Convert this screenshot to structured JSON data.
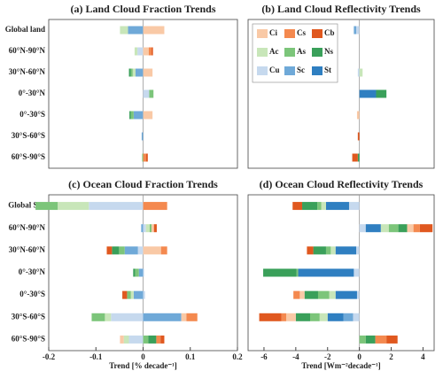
{
  "chart_data": [
    {
      "type": "bar",
      "orientation": "horizontal",
      "stacked": true,
      "title": "(a) Land Cloud Fraction Trends",
      "categories": [
        "Global land",
        "60°N-90°N",
        "30°N-60°N",
        "0°-30°N",
        "0°-30°S",
        "30°S-60°S",
        "60°S-90°S"
      ],
      "xlim": [
        -0.2,
        0.2
      ],
      "series": [
        {
          "color": "#c6d9ee",
          "values": [
            0,
            -0.012,
            0,
            0.013,
            0,
            0,
            0
          ]
        },
        {
          "color": "#6fa9d8",
          "values": [
            -0.032,
            0,
            -0.016,
            0,
            -0.02,
            -0.003,
            0
          ]
        },
        {
          "color": "#2f7fc1",
          "values": [
            0,
            0,
            0,
            0,
            0,
            0,
            0
          ]
        },
        {
          "color": "#c8e6b9",
          "values": [
            -0.017,
            -0.006,
            -0.006,
            0,
            0,
            0,
            0
          ]
        },
        {
          "color": "#7cc57a",
          "values": [
            0,
            0,
            -0.004,
            0.009,
            -0.006,
            0,
            -0.002
          ]
        },
        {
          "color": "#3aa05a",
          "values": [
            0,
            0,
            -0.004,
            0,
            -0.003,
            0,
            0
          ]
        },
        {
          "color": "#f9c9a6",
          "values": [
            0.045,
            0.012,
            0.02,
            0,
            0.02,
            0,
            0
          ]
        },
        {
          "color": "#f4894f",
          "values": [
            0,
            0.006,
            0,
            0,
            0,
            0,
            0.006
          ]
        },
        {
          "color": "#e0581f",
          "values": [
            0,
            0.003,
            0,
            0,
            0,
            0,
            0.004
          ]
        }
      ]
    },
    {
      "type": "bar",
      "orientation": "horizontal",
      "stacked": true,
      "title": "(b) Land Cloud Reflectivity Trends",
      "categories": [
        null,
        null,
        null,
        null,
        null,
        null,
        null
      ],
      "xlim": [
        -7,
        4.7
      ],
      "legend": "upper left",
      "series": [
        {
          "name": "Cu",
          "color": "#c6d9ee",
          "values": [
            -0.2,
            0,
            -0.1,
            0,
            0,
            0,
            0
          ]
        },
        {
          "name": "Sc",
          "color": "#6fa9d8",
          "values": [
            -0.15,
            0,
            0,
            0,
            0,
            0,
            0
          ]
        },
        {
          "name": "St",
          "color": "#2f7fc1",
          "values": [
            0,
            0,
            0,
            1.05,
            0,
            0,
            0
          ]
        },
        {
          "name": "Ac",
          "color": "#c8e6b9",
          "values": [
            0,
            0,
            0.2,
            0,
            0,
            0,
            0
          ]
        },
        {
          "name": "As",
          "color": "#7cc57a",
          "values": [
            0,
            0,
            0,
            0,
            0,
            0,
            0
          ]
        },
        {
          "name": "Ns",
          "color": "#3aa05a",
          "values": [
            0,
            0,
            0,
            0.65,
            0,
            0,
            -0.1
          ]
        },
        {
          "name": "Ci",
          "color": "#f9c9a6",
          "values": [
            0,
            0,
            0,
            0,
            -0.15,
            0,
            0
          ]
        },
        {
          "name": "Cs",
          "color": "#f4894f",
          "values": [
            0,
            0,
            0,
            0,
            0,
            0,
            0
          ]
        },
        {
          "name": "Cb",
          "color": "#e0581f",
          "values": [
            0,
            0,
            0,
            0,
            0,
            -0.1,
            -0.35
          ]
        }
      ]
    },
    {
      "type": "bar",
      "orientation": "horizontal",
      "stacked": true,
      "title": "(c) Ocean Cloud Fraction Trends",
      "categories": [
        "Global Sea",
        "60°N-90°N",
        "30°N-60°N",
        "0°-30°N",
        "0°-30°S",
        "30°S-60°S",
        "60°S-90°S"
      ],
      "xlim": [
        -0.2,
        0.2
      ],
      "xticks": [
        -0.2,
        -0.1,
        0,
        0.1,
        0.2
      ],
      "xlabel": "Trend [% decade⁻¹]",
      "series": [
        {
          "color": "#c6d9ee",
          "values": [
            -0.115,
            0.006,
            -0.011,
            0.002,
            0.004,
            -0.068,
            -0.03
          ]
        },
        {
          "color": "#6fa9d8",
          "values": [
            0,
            -0.004,
            -0.028,
            -0.009,
            -0.02,
            0.081,
            0
          ]
        },
        {
          "color": "#2f7fc1",
          "values": [
            0,
            0,
            0,
            0,
            0,
            0,
            0
          ]
        },
        {
          "color": "#c8e6b9",
          "values": [
            -0.066,
            0.008,
            0,
            0,
            -0.006,
            -0.013,
            -0.011
          ]
        },
        {
          "color": "#7cc57a",
          "values": [
            -0.047,
            0.004,
            -0.012,
            -0.008,
            -0.008,
            -0.028,
            0.011
          ]
        },
        {
          "color": "#3aa05a",
          "values": [
            0,
            0,
            -0.015,
            -0.004,
            0,
            0,
            0.017
          ]
        },
        {
          "color": "#f9c9a6",
          "values": [
            0,
            0.005,
            0.038,
            0,
            0,
            0.011,
            -0.008
          ]
        },
        {
          "color": "#f4894f",
          "values": [
            0.051,
            0,
            0.013,
            0,
            0,
            0.023,
            0.009
          ]
        },
        {
          "color": "#e0581f",
          "values": [
            0,
            0.006,
            -0.011,
            0,
            -0.01,
            0,
            0.008
          ]
        }
      ]
    },
    {
      "type": "bar",
      "orientation": "horizontal",
      "stacked": true,
      "title": "(d) Ocean Cloud Reflectivity Trends",
      "categories": [
        null,
        null,
        null,
        null,
        null,
        null,
        null
      ],
      "xlim": [
        -7,
        4.7
      ],
      "xticks": [
        -6,
        -4,
        -2,
        0,
        2,
        4
      ],
      "xlabel": "Trend [Wm⁻²decade⁻¹]",
      "series": [
        {
          "color": "#c6d9ee",
          "values": [
            -0.65,
            0.4,
            -0.2,
            -0.35,
            -0.15,
            -0.4,
            0
          ]
        },
        {
          "color": "#6fa9d8",
          "values": [
            0,
            0,
            0,
            0,
            0,
            -0.6,
            0
          ]
        },
        {
          "color": "#2f7fc1",
          "values": [
            -1.45,
            0.95,
            -1.3,
            -3.5,
            -1.35,
            -1.0,
            0
          ]
        },
        {
          "color": "#c8e6b9",
          "values": [
            -0.3,
            0.5,
            -0.3,
            0,
            -0.4,
            -0.5,
            0
          ]
        },
        {
          "color": "#7cc57a",
          "values": [
            -0.25,
            0.6,
            -0.3,
            -0.1,
            -0.7,
            -0.6,
            0.4
          ]
        },
        {
          "color": "#3aa05a",
          "values": [
            -0.95,
            0.55,
            -0.8,
            -2.1,
            -0.85,
            -0.9,
            0.6
          ]
        },
        {
          "color": "#f9c9a6",
          "values": [
            0,
            0.4,
            0,
            0,
            -0.3,
            -0.6,
            0
          ]
        },
        {
          "color": "#f4894f",
          "values": [
            0,
            0.4,
            0,
            0,
            -0.4,
            -0.3,
            0.7
          ]
        },
        {
          "color": "#e0581f",
          "values": [
            -0.6,
            0.8,
            -0.4,
            0,
            0,
            -1.4,
            0.7
          ]
        }
      ]
    }
  ]
}
